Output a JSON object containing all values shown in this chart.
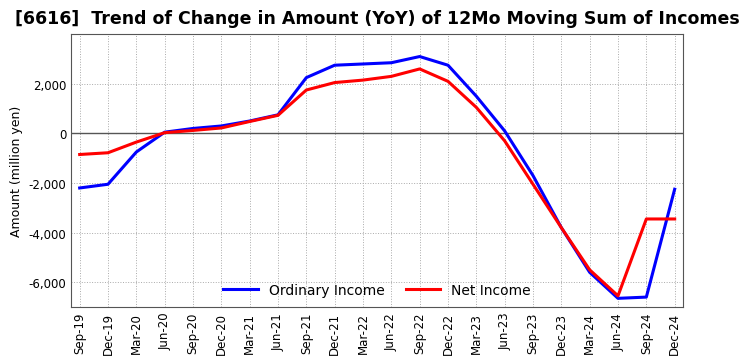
{
  "title": "[6616]  Trend of Change in Amount (YoY) of 12Mo Moving Sum of Incomes",
  "ylabel": "Amount (million yen)",
  "x_labels": [
    "Sep-19",
    "Dec-19",
    "Mar-20",
    "Jun-20",
    "Sep-20",
    "Dec-20",
    "Mar-21",
    "Jun-21",
    "Sep-21",
    "Dec-21",
    "Mar-22",
    "Jun-22",
    "Sep-22",
    "Dec-22",
    "Mar-23",
    "Jun-23",
    "Sep-23",
    "Dec-23",
    "Mar-24",
    "Jun-24",
    "Sep-24",
    "Dec-24"
  ],
  "ordinary_income": [
    -2200,
    -2050,
    -750,
    50,
    200,
    300,
    500,
    750,
    2250,
    2750,
    2800,
    2850,
    3100,
    2750,
    1500,
    100,
    -1700,
    -3800,
    -5600,
    -6650,
    -6600,
    -2250
  ],
  "net_income": [
    -850,
    -780,
    -350,
    30,
    120,
    220,
    480,
    730,
    1750,
    2050,
    2150,
    2300,
    2600,
    2100,
    1050,
    -300,
    -2050,
    -3800,
    -5500,
    -6550,
    -3450,
    -3450
  ],
  "ordinary_income_color": "#0000FF",
  "net_income_color": "#FF0000",
  "background_color": "#FFFFFF",
  "plot_background_color": "#FFFFFF",
  "grid_color": "#AAAAAA",
  "ylim": [
    -7000,
    4000
  ],
  "yticks": [
    -6000,
    -4000,
    -2000,
    0,
    2000
  ],
  "line_width": 2.2,
  "title_fontsize": 12.5,
  "legend_fontsize": 10,
  "tick_fontsize": 8.5
}
